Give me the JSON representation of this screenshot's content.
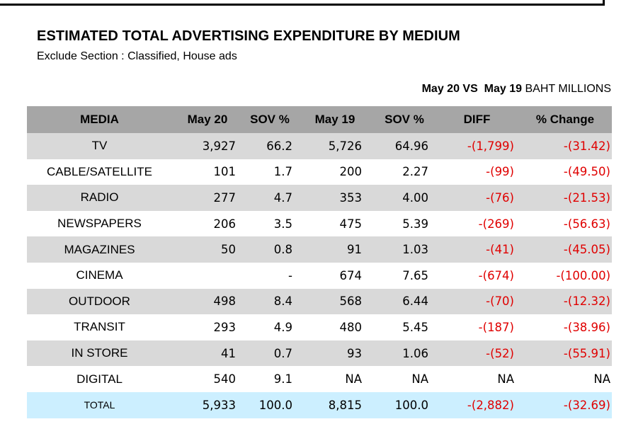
{
  "report": {
    "title": "ESTIMATED TOTAL ADVERTISING EXPENDITURE BY MEDIUM",
    "subtitle": "Exclude Section : Classified, House ads",
    "period_current": "May 20",
    "period_vs": "VS",
    "period_previous": "May 19",
    "unit": "BAHT MILLIONS"
  },
  "table": {
    "headers": [
      "MEDIA",
      "May 20",
      "SOV %",
      "May 19",
      "SOV %",
      "DIFF",
      "% Change"
    ],
    "rows": [
      [
        "TV",
        "3,927",
        "66.2",
        "5,726",
        "64.96",
        "-(1,799)",
        "-(31.42)"
      ],
      [
        "CABLE/SATELLITE",
        "101",
        "1.7",
        "200",
        "2.27",
        "-(99)",
        "-(49.50)"
      ],
      [
        "RADIO",
        "277",
        "4.7",
        "353",
        "4.00",
        "-(76)",
        "-(21.53)"
      ],
      [
        "NEWSPAPERS",
        "206",
        "3.5",
        "475",
        "5.39",
        "-(269)",
        "-(56.63)"
      ],
      [
        "MAGAZINES",
        "50",
        "0.8",
        "91",
        "1.03",
        "-(41)",
        "-(45.05)"
      ],
      [
        "CINEMA",
        "",
        "-",
        "674",
        "7.65",
        "-(674)",
        "-(100.00)"
      ],
      [
        "OUTDOOR",
        "498",
        "8.4",
        "568",
        "6.44",
        "-(70)",
        "-(12.32)"
      ],
      [
        "TRANSIT",
        "293",
        "4.9",
        "480",
        "5.45",
        "-(187)",
        "-(38.96)"
      ],
      [
        "IN STORE",
        "41",
        "0.7",
        "93",
        "1.06",
        "-(52)",
        "-(55.91)"
      ],
      [
        "DIGITAL",
        "540",
        "9.1",
        "NA",
        "NA",
        "NA",
        "NA"
      ]
    ],
    "total": [
      "TOTAL",
      "5,933",
      "100.0",
      "8,815",
      "100.0",
      "-(2,882)",
      "-(32.69)"
    ]
  },
  "colors": {
    "header_bg": "#a6a6a6",
    "shaded_row_bg": "#d9d9d9",
    "total_row_bg": "#ccefff",
    "negative_text": "#e00000"
  }
}
